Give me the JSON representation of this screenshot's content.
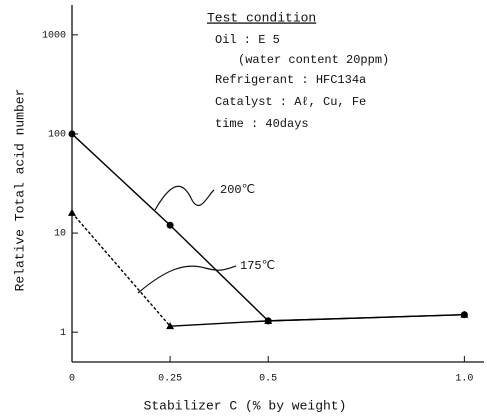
{
  "chart_data": {
    "type": "line",
    "x_label": "Stabilizer C (% by weight)",
    "y_label": "Relative Total acid number",
    "annotations": [
      "Test condition",
      "Oil : E 5",
      "(water content 20ppm)",
      "Refrigerant : HFC134a",
      "Catalyst : Aℓ, Cu, Fe",
      "time : 40days"
    ],
    "x": [
      0,
      0.25,
      0.5,
      1.0
    ],
    "series": [
      {
        "name": "200℃",
        "color": "#000000",
        "marker": "circle",
        "line_styles": [
          "solid",
          "solid",
          "solid"
        ],
        "values": [
          100,
          12,
          1.3,
          1.5
        ]
      },
      {
        "name": "175℃",
        "color": "#000000",
        "marker": "triangle",
        "line_styles": [
          "dashed",
          "solid",
          "solid"
        ],
        "values": [
          16,
          1.15,
          1.3,
          1.5
        ]
      }
    ],
    "xlim": [
      0,
      1.05
    ],
    "ylim": [
      0.5,
      2000
    ],
    "log_y": true,
    "xticks": [
      0,
      0.25,
      0.5,
      {
        "value": 1.0,
        "label": "1.0"
      }
    ],
    "yticks": [
      1,
      10,
      100,
      1000
    ]
  }
}
